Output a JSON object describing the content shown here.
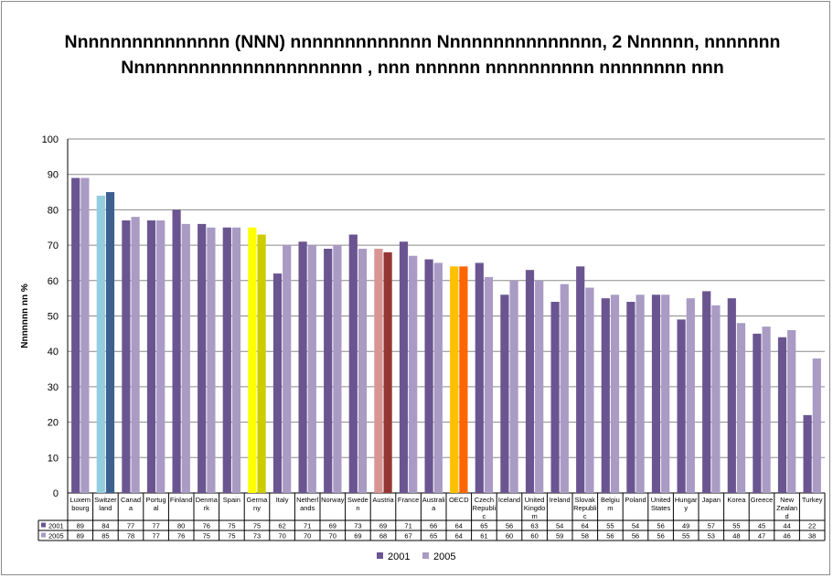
{
  "chart_data": {
    "type": "bar",
    "title": "Nnnnnnnnnnnnnnn (NNN) nnnnnnnnnnnnn  Nnnnnnnnnnnnnnn, 2 Nnnnnn, nnnnnnn Nnnnnnnnnnnnnnnnnnnnnn , nnn nnnnnn nnnnnnnnnn nnnnnnnn nnn",
    "ylabel": "Nnnnnnn nn %",
    "ylim": [
      0,
      100
    ],
    "yticks": [
      0,
      10,
      20,
      30,
      40,
      50,
      60,
      70,
      80,
      90,
      100
    ],
    "grid": true,
    "legend_position": "bottom",
    "categories": [
      [
        "Luxem",
        "bourg"
      ],
      [
        "Switzer",
        "land"
      ],
      [
        "Canad",
        "a"
      ],
      [
        "Portug",
        "al"
      ],
      [
        "Finland"
      ],
      [
        "Denma",
        "rk"
      ],
      [
        "Spain"
      ],
      [
        "Germa",
        "ny"
      ],
      [
        "Italy"
      ],
      [
        "Netherl",
        "ands"
      ],
      [
        "Norway"
      ],
      [
        "Swede",
        "n"
      ],
      [
        "Austria"
      ],
      [
        "France"
      ],
      [
        "Australi",
        "a"
      ],
      [
        "OECD"
      ],
      [
        "Czech",
        "Republi",
        "c"
      ],
      [
        "Iceland"
      ],
      [
        "United",
        "Kingdo",
        "m"
      ],
      [
        "Ireland"
      ],
      [
        "Slovak",
        "Republi",
        "c"
      ],
      [
        "Belgiu",
        "m"
      ],
      [
        "Poland"
      ],
      [
        "United",
        "States"
      ],
      [
        "Hungar",
        "y"
      ],
      [
        "Japan"
      ],
      [
        "Korea"
      ],
      [
        "Greece"
      ],
      [
        "New",
        "Zealan",
        "d"
      ],
      [
        "Turkey"
      ]
    ],
    "series": [
      {
        "name": "2001",
        "color": "#6b5591",
        "values": [
          89,
          84,
          77,
          77,
          80,
          76,
          75,
          75,
          62,
          71,
          69,
          73,
          69,
          71,
          66,
          64,
          65,
          56,
          63,
          54,
          64,
          55,
          54,
          56,
          49,
          57,
          55,
          45,
          44,
          22
        ]
      },
      {
        "name": "2005",
        "color": "#a99bc4",
        "values": [
          89,
          85,
          78,
          77,
          76,
          75,
          75,
          73,
          70,
          70,
          70,
          69,
          68,
          67,
          65,
          64,
          61,
          60,
          60,
          59,
          58,
          56,
          56,
          56,
          55,
          53,
          48,
          47,
          46,
          38
        ]
      }
    ],
    "highlight_colors": {
      "1": [
        "#94cddd",
        "#3c6190"
      ],
      "7": [
        "#ffff00",
        "#cccc00"
      ],
      "12": [
        "#d99594",
        "#943634"
      ],
      "15": [
        "#ffc000",
        "#ff6600"
      ]
    }
  }
}
